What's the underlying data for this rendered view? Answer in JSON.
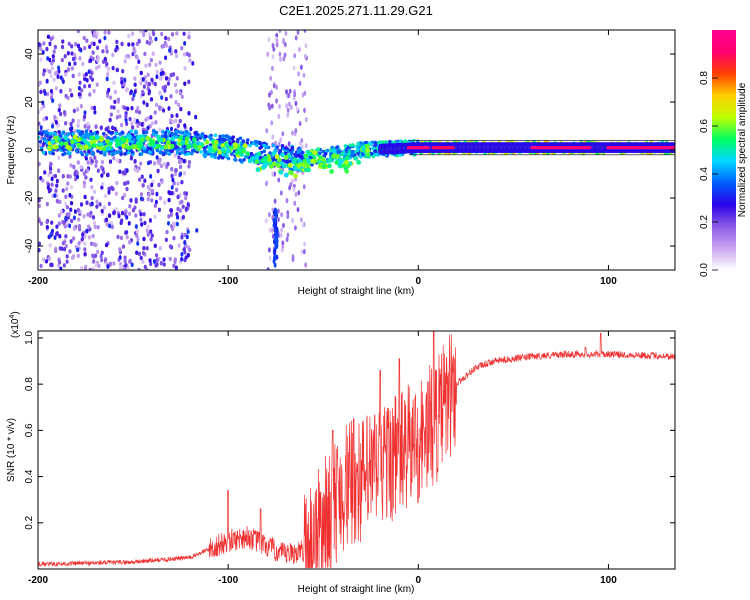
{
  "title": "C2E1.2025.271.11.29.G21",
  "chart_data": [
    {
      "type": "heatmap",
      "name": "spectrogram",
      "xlabel": "Height of straight line (km)",
      "ylabel": "Frequency (Hz)",
      "xlim": [
        -200,
        135
      ],
      "ylim": [
        -50,
        50
      ],
      "xticks": [
        "-200",
        "-100",
        "0",
        "100"
      ],
      "xtick_values": [
        -200,
        -100,
        0,
        100
      ],
      "yticks": [
        "-40",
        "-20",
        "0",
        "20",
        "40"
      ],
      "ytick_values": [
        -40,
        -20,
        0,
        20,
        40
      ],
      "colorbar": {
        "label": "Normalized spectral amplitude",
        "range": [
          0,
          1
        ],
        "ticks": [
          "0.0",
          "0.2",
          "0.4",
          "0.6",
          "0.8"
        ],
        "tick_values": [
          0,
          0.2,
          0.4,
          0.6,
          0.8
        ],
        "stops": [
          "#ffffff",
          "#c8a6f0",
          "#8a5ce6",
          "#2a00e8",
          "#0060ff",
          "#00d8ff",
          "#00ff60",
          "#c0ff00",
          "#ffd000",
          "#ff4000",
          "#ff0070",
          "#ff0090"
        ]
      },
      "center_line": [
        [
          -200,
          3
        ],
        [
          -150,
          3
        ],
        [
          -120,
          3
        ],
        [
          -100,
          1
        ],
        [
          -80,
          -2
        ],
        [
          -60,
          -4
        ],
        [
          -50,
          -2
        ],
        [
          -30,
          0
        ],
        [
          0,
          1
        ],
        [
          135,
          1
        ]
      ],
      "ridge_segments": [
        {
          "x": [
            -5,
            5
          ],
          "freq": 1,
          "amp": 0.95
        },
        {
          "x": [
            8,
            18
          ],
          "freq": 1,
          "amp": 0.9
        },
        {
          "x": [
            60,
            90
          ],
          "freq": 1,
          "amp": 0.95
        },
        {
          "x": [
            100,
            135
          ],
          "freq": 1,
          "amp": 0.95
        }
      ]
    },
    {
      "type": "line",
      "name": "snr",
      "xlabel": "Height of straight line (km)",
      "ylabel": "SNR (10 * v/v)",
      "yscale_label": "(x10",
      "yscale_exp": "4",
      "yscale_close": ")",
      "xlim": [
        -200,
        135
      ],
      "ylim": [
        0,
        1.03
      ],
      "xticks": [
        "-200",
        "-100",
        "0",
        "100"
      ],
      "xtick_values": [
        -200,
        -100,
        0,
        100
      ],
      "yticks": [
        "0.2",
        "0.4",
        "0.6",
        "0.8",
        "1.0"
      ],
      "ytick_values": [
        0.2,
        0.4,
        0.6,
        0.8,
        1.0
      ],
      "color": "#f03030",
      "baseline": [
        [
          -200,
          0.02
        ],
        [
          -150,
          0.03
        ],
        [
          -120,
          0.05
        ],
        [
          -100,
          0.12
        ],
        [
          -90,
          0.14
        ],
        [
          -80,
          0.1
        ],
        [
          -70,
          0.06
        ],
        [
          -60,
          0.08
        ],
        [
          -50,
          0.2
        ],
        [
          -40,
          0.35
        ],
        [
          -30,
          0.38
        ],
        [
          -20,
          0.45
        ],
        [
          -10,
          0.5
        ],
        [
          0,
          0.55
        ],
        [
          10,
          0.65
        ],
        [
          20,
          0.8
        ],
        [
          30,
          0.87
        ],
        [
          40,
          0.9
        ],
        [
          60,
          0.92
        ],
        [
          80,
          0.93
        ],
        [
          100,
          0.93
        ],
        [
          135,
          0.92
        ]
      ],
      "peaks": [
        [
          -100,
          0.34
        ],
        [
          -83,
          0.26
        ],
        [
          -45,
          0.6
        ],
        [
          -34,
          0.65
        ],
        [
          -20,
          0.86
        ],
        [
          -10,
          0.91
        ],
        [
          8,
          1.03
        ],
        [
          96,
          1.02
        ],
        [
          88,
          0.96
        ]
      ]
    }
  ]
}
